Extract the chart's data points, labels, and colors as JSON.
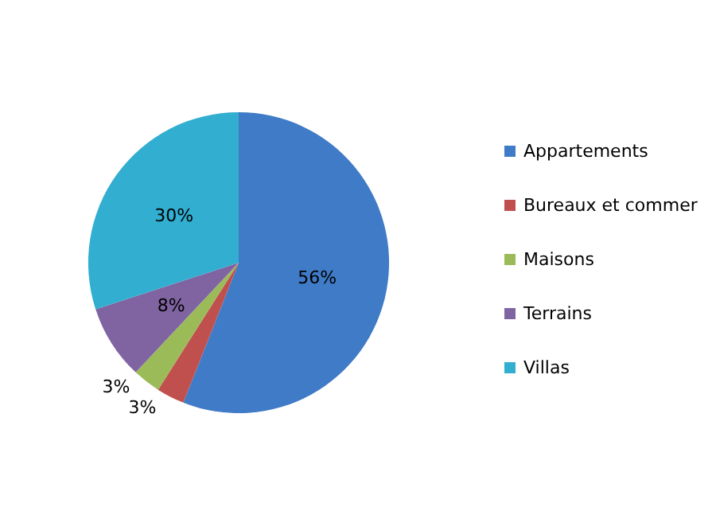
{
  "chart_data": {
    "type": "pie",
    "categories": [
      "Appartements",
      "Bureaux et commer",
      "Maisons",
      "Terrains",
      "Villas"
    ],
    "values": [
      56,
      3,
      3,
      8,
      30
    ],
    "colors": [
      "#3f7bc6",
      "#c0504d",
      "#9bbb59",
      "#8064a2",
      "#31aed0"
    ],
    "value_labels": [
      "56%",
      "3%",
      "3%",
      "8%",
      "30%"
    ],
    "legend": "right"
  }
}
